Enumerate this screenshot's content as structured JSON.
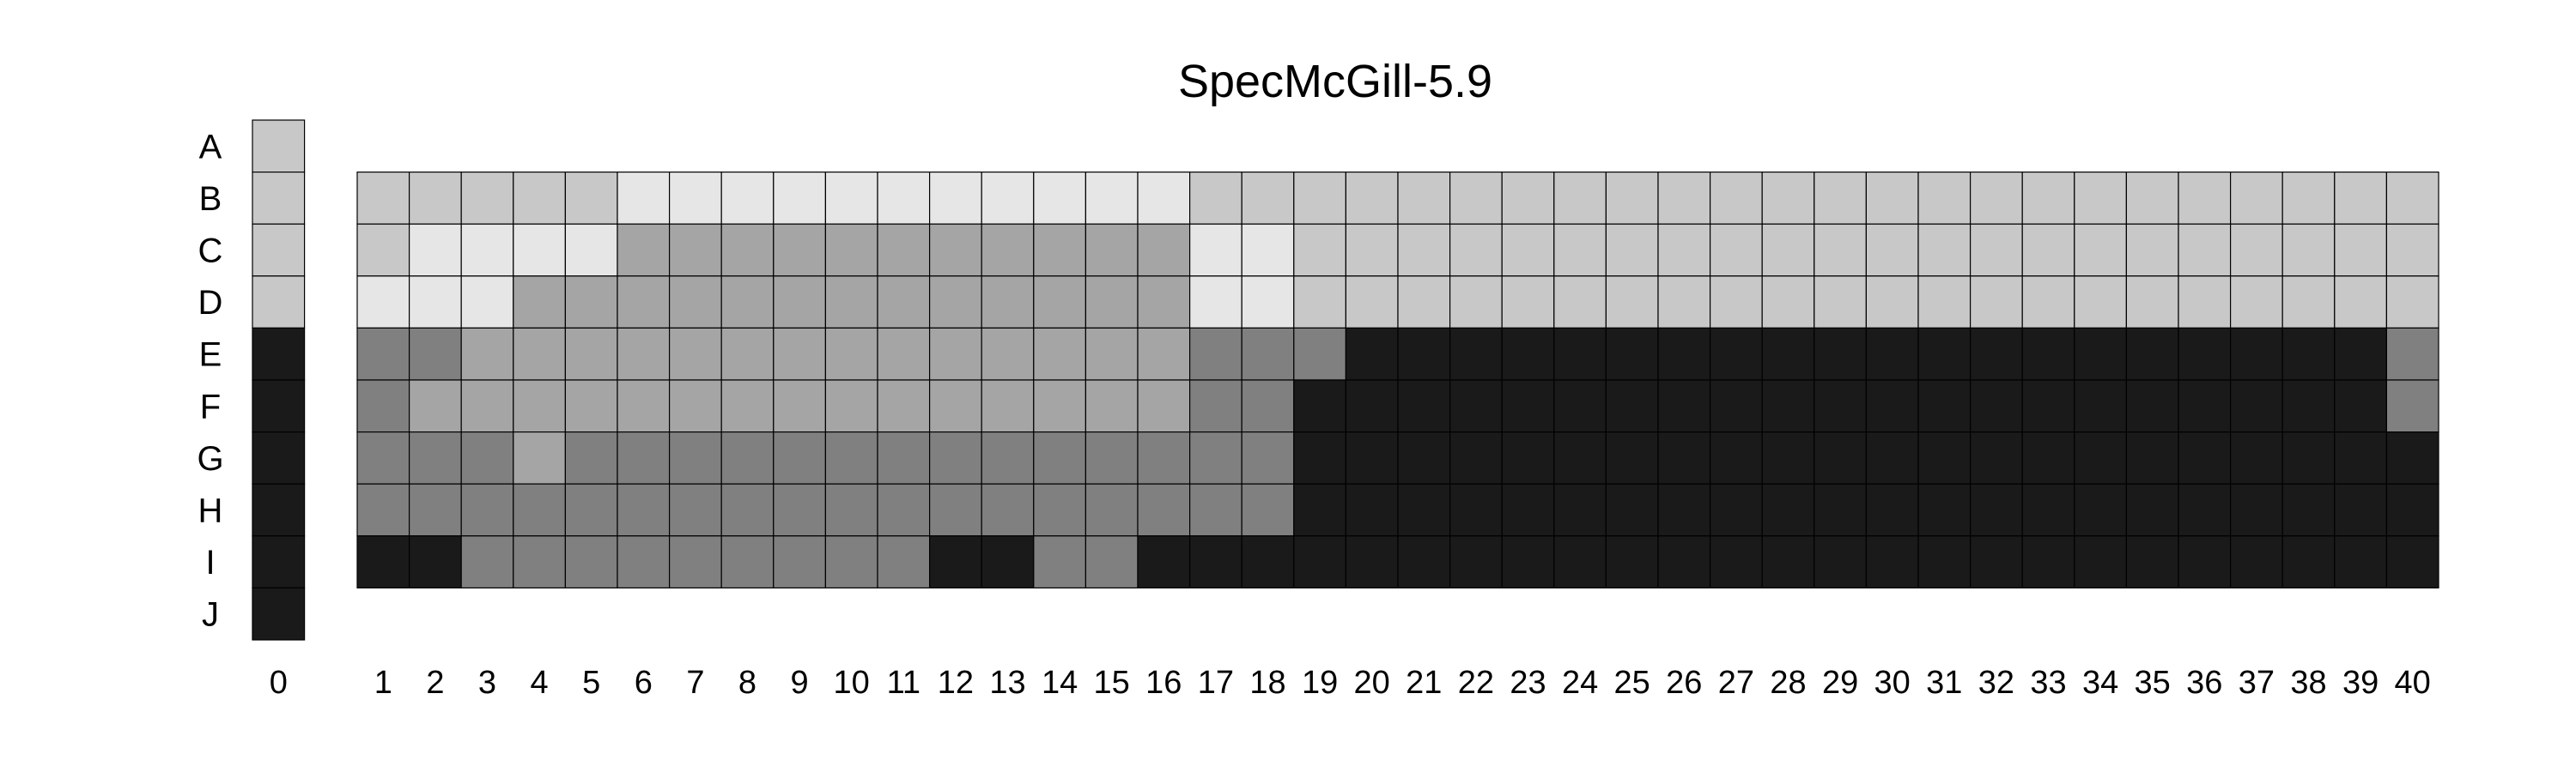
{
  "chart_data": {
    "type": "heatmap",
    "title": "SpecMcGill-5.9",
    "rows": [
      "A",
      "B",
      "C",
      "D",
      "E",
      "F",
      "G",
      "H",
      "I",
      "J"
    ],
    "columns": [
      "0",
      "1",
      "2",
      "3",
      "4",
      "5",
      "6",
      "7",
      "8",
      "9",
      "10",
      "11",
      "12",
      "13",
      "14",
      "15",
      "16",
      "17",
      "18",
      "19",
      "20",
      "21",
      "22",
      "23",
      "24",
      "25",
      "26",
      "27",
      "28",
      "29",
      "30",
      "31",
      "32",
      "33",
      "34",
      "35",
      "36",
      "37",
      "38",
      "39",
      "40"
    ],
    "legend": "none",
    "grid": false,
    "levels": {
      "0": "#e6e6e6",
      "1": "#c8c8c8",
      "2": "#a5a5a5",
      "3": "#808080",
      "4": "#1a1a1a"
    },
    "reference_column": {
      "label": "0",
      "values": [
        1,
        1,
        1,
        1,
        4,
        4,
        4,
        4,
        4,
        4
      ]
    },
    "grid_rows": [
      {
        "row": "B",
        "values": [
          1,
          1,
          1,
          1,
          1,
          0,
          0,
          0,
          0,
          0,
          0,
          0,
          0,
          0,
          0,
          0,
          1,
          1,
          1,
          1,
          1,
          1,
          1,
          1,
          1,
          1,
          1,
          1,
          1,
          1,
          1,
          1,
          1,
          1,
          1,
          1,
          1,
          1,
          1,
          1
        ]
      },
      {
        "row": "C",
        "values": [
          1,
          0,
          0,
          0,
          0,
          2,
          2,
          2,
          2,
          2,
          2,
          2,
          2,
          2,
          2,
          2,
          0,
          0,
          1,
          1,
          1,
          1,
          1,
          1,
          1,
          1,
          1,
          1,
          1,
          1,
          1,
          1,
          1,
          1,
          1,
          1,
          1,
          1,
          1,
          1
        ]
      },
      {
        "row": "D",
        "values": [
          0,
          0,
          0,
          2,
          2,
          2,
          2,
          2,
          2,
          2,
          2,
          2,
          2,
          2,
          2,
          2,
          0,
          0,
          1,
          1,
          1,
          1,
          1,
          1,
          1,
          1,
          1,
          1,
          1,
          1,
          1,
          1,
          1,
          1,
          1,
          1,
          1,
          1,
          1,
          1
        ]
      },
      {
        "row": "E",
        "values": [
          3,
          3,
          2,
          2,
          2,
          2,
          2,
          2,
          2,
          2,
          2,
          2,
          2,
          2,
          2,
          2,
          3,
          3,
          3,
          4,
          4,
          4,
          4,
          4,
          4,
          4,
          4,
          4,
          4,
          4,
          4,
          4,
          4,
          4,
          4,
          4,
          4,
          4,
          4,
          3
        ]
      },
      {
        "row": "F",
        "values": [
          3,
          2,
          2,
          2,
          2,
          2,
          2,
          2,
          2,
          2,
          2,
          2,
          2,
          2,
          2,
          2,
          3,
          3,
          4,
          4,
          4,
          4,
          4,
          4,
          4,
          4,
          4,
          4,
          4,
          4,
          4,
          4,
          4,
          4,
          4,
          4,
          4,
          4,
          4,
          3
        ]
      },
      {
        "row": "G",
        "values": [
          3,
          3,
          3,
          2,
          3,
          3,
          3,
          3,
          3,
          3,
          3,
          3,
          3,
          3,
          3,
          3,
          3,
          3,
          4,
          4,
          4,
          4,
          4,
          4,
          4,
          4,
          4,
          4,
          4,
          4,
          4,
          4,
          4,
          4,
          4,
          4,
          4,
          4,
          4,
          4
        ]
      },
      {
        "row": "H",
        "values": [
          3,
          3,
          3,
          3,
          3,
          3,
          3,
          3,
          3,
          3,
          3,
          3,
          3,
          3,
          3,
          3,
          3,
          3,
          4,
          4,
          4,
          4,
          4,
          4,
          4,
          4,
          4,
          4,
          4,
          4,
          4,
          4,
          4,
          4,
          4,
          4,
          4,
          4,
          4,
          4
        ]
      },
      {
        "row": "I",
        "values": [
          4,
          4,
          3,
          3,
          3,
          3,
          3,
          3,
          3,
          3,
          3,
          4,
          4,
          3,
          3,
          4,
          4,
          4,
          4,
          4,
          4,
          4,
          4,
          4,
          4,
          4,
          4,
          4,
          4,
          4,
          4,
          4,
          4,
          4,
          4,
          4,
          4,
          4,
          4,
          4
        ]
      }
    ]
  }
}
